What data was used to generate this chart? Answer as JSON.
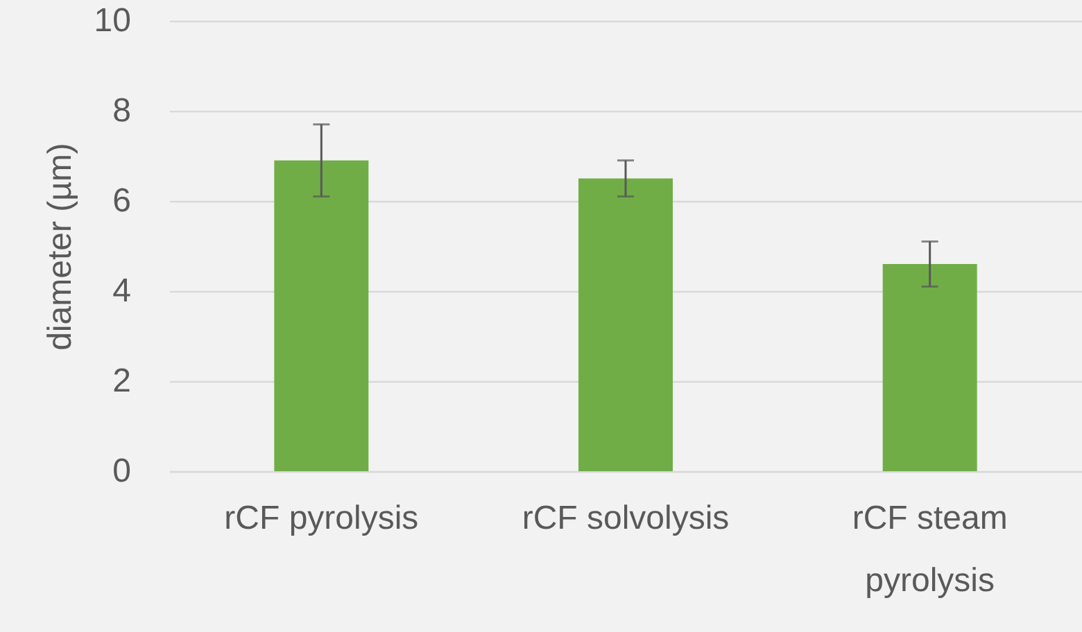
{
  "chart_data": {
    "type": "bar",
    "ylabel": "diameter (µm)",
    "categories": [
      "rCF pyrolysis",
      "rCF solvolysis",
      "rCF steam pyrolysis"
    ],
    "values": [
      6.9,
      6.5,
      4.6
    ],
    "errors": [
      0.8,
      0.4,
      0.5
    ],
    "color": "#70ad47",
    "ylim": [
      0,
      10
    ],
    "yticks": [
      0,
      2,
      4,
      6,
      8,
      10
    ],
    "grid": "y"
  }
}
